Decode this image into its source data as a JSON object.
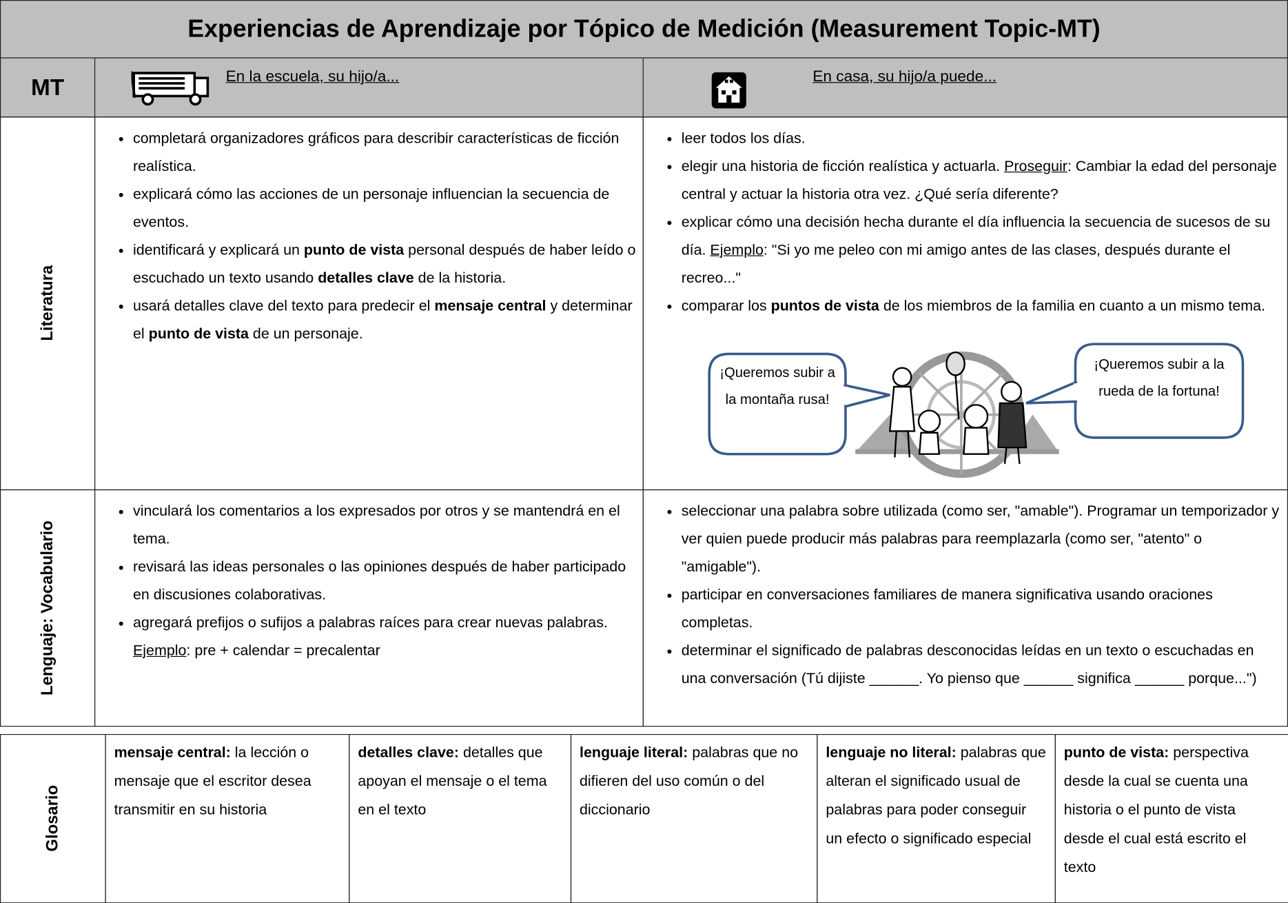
{
  "header": {
    "title": "Experiencias de Aprendizaje por Tópico de Medición (Measurement Topic-MT)"
  },
  "columns": {
    "mt": "MT",
    "school": "En la escuela, su hijo/a...",
    "home": "En casa, su hijo/a puede..."
  },
  "rows": [
    {
      "label": "Literatura",
      "school": [
        {
          "runs": [
            {
              "text": "completará organizadores gráficos para describir características de ficción realística."
            }
          ]
        },
        {
          "runs": [
            {
              "text": "explicará cómo las acciones de un personaje influencian la secuencia de eventos."
            }
          ]
        },
        {
          "runs": [
            {
              "text": "identificará y explicará un "
            },
            {
              "text": "punto de vista",
              "style": "bold"
            },
            {
              "text": " personal después de haber leído o escuchado un texto usando "
            },
            {
              "text": "detalles clave",
              "style": "bold"
            },
            {
              "text": " de la historia."
            }
          ]
        },
        {
          "runs": [
            {
              "text": "usará detalles clave del texto para predecir el "
            },
            {
              "text": "mensaje central",
              "style": "bold"
            },
            {
              "text": " y determinar el "
            },
            {
              "text": "punto de vista",
              "style": "bold"
            },
            {
              "text": " de un personaje."
            }
          ]
        }
      ],
      "home": [
        {
          "runs": [
            {
              "text": "leer todos los días."
            }
          ]
        },
        {
          "runs": [
            {
              "text": "elegir una historia de ficción realística y actuarla. "
            },
            {
              "text": "Proseguir",
              "style": "underline"
            },
            {
              "text": ": Cambiar la edad del personaje central y actuar la historia otra vez. ¿Qué sería diferente?"
            }
          ]
        },
        {
          "runs": [
            {
              "text": "explicar cómo una decisión hecha durante el día influencia la secuencia de sucesos de su día. "
            },
            {
              "text": "Ejemplo",
              "style": "underline"
            },
            {
              "text": ": \"Si yo me peleo con mi amigo antes de las clases, después durante el recreo...\""
            }
          ]
        },
        {
          "runs": [
            {
              "text": "comparar los "
            },
            {
              "text": "puntos de vista",
              "style": "bold"
            },
            {
              "text": " de los miembros de la familia en cuanto a un mismo tema."
            }
          ]
        }
      ]
    },
    {
      "label": "Lenguaje: Vocabulario",
      "school": [
        {
          "runs": [
            {
              "text": "vinculará los comentarios a los expresados por otros y se mantendrá en el tema."
            }
          ]
        },
        {
          "runs": [
            {
              "text": "revisará las ideas personales o las opiniones después de haber participado en discusiones colaborativas."
            }
          ]
        },
        {
          "runs": [
            {
              "text": "agregará prefijos o sufijos a palabras raíces para crear nuevas palabras."
            }
          ]
        },
        {
          "bullet": false,
          "runs": [
            {
              "text": "Ejemplo",
              "style": "underline"
            },
            {
              "text": ": pre + calendar = precalentar"
            }
          ]
        }
      ],
      "home": [
        {
          "runs": [
            {
              "text": "seleccionar una palabra sobre utilizada (como ser, \"amable\").  Programar un temporizador y ver quien puede producir más palabras para reemplazarla (como ser, \"atento\" o \"amigable\")."
            }
          ]
        },
        {
          "runs": [
            {
              "text": "participar en conversaciones familiares de manera significativa usando oraciones completas."
            }
          ]
        },
        {
          "runs": [
            {
              "text": "determinar el significado de palabras desconocidas leídas en un texto o escuchadas en una conversación (Tú dijiste ______.   Yo pienso que ______ significa ______ porque...\")"
            }
          ]
        }
      ]
    }
  ],
  "bubbles": [
    "¡Queremos subir a la montaña rusa!",
    "¡Queremos subir a la rueda de la fortuna!"
  ],
  "glossary": {
    "label": "Glosario",
    "terms": [
      {
        "term": "mensaje central:",
        "definition": "la lección o mensaje que el escritor desea transmitir en su historia"
      },
      {
        "term": "detalles clave:",
        "definition": "detalles que apoyan el mensaje o el tema en el texto"
      },
      {
        "term": "lenguaje literal:",
        "definition": "palabras que no difieren del uso común o del diccionario"
      },
      {
        "term": "lenguaje no literal:",
        "definition": "palabras que alteran el significado usual de palabras para poder conseguir un efecto o significado especial"
      },
      {
        "term": "punto de vista:",
        "definition": "perspectiva desde la cual se cuenta una historia o el punto de vista desde el cual está escrito el texto"
      }
    ]
  }
}
